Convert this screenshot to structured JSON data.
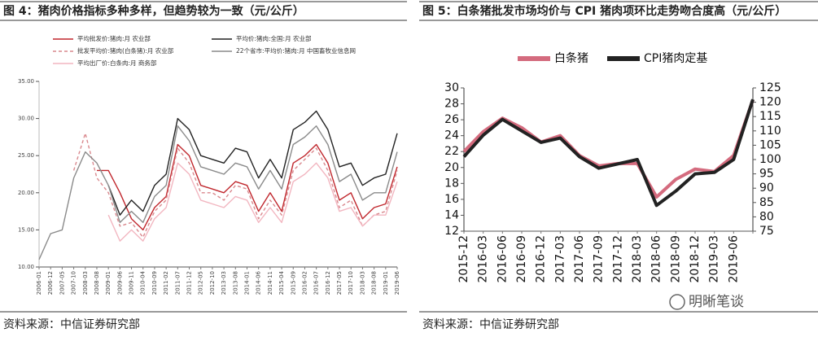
{
  "chart_data": [
    {
      "type": "line",
      "title": "图 4：猪肉价格指标多种多样，但趋势较为一致（元/公斤）",
      "source": "资料来源：中信证券研究部",
      "categories": [
        "2006-01",
        "2006-12",
        "2007-05",
        "2007-10",
        "2008-03",
        "2008-08",
        "2009-01",
        "2009-06",
        "2009-11",
        "2010-04",
        "2010-09",
        "2011-02",
        "2011-07",
        "2011-12",
        "2012-05",
        "2012-10",
        "2013-03",
        "2013-08",
        "2014-01",
        "2014-06",
        "2014-11",
        "2015-04",
        "2015-09",
        "2016-02",
        "2016-07",
        "2016-12",
        "2017-05",
        "2017-10",
        "2018-03",
        "2018-08",
        "2019-01",
        "2019-06"
      ],
      "ylim": [
        10,
        35
      ],
      "yticks": [
        {
          "value": 10,
          "label": "10.00"
        },
        {
          "value": 15,
          "label": "15.00"
        },
        {
          "value": 20,
          "label": "20.00"
        },
        {
          "value": 25,
          "label": "25.00"
        },
        {
          "value": 30,
          "label": "30.00"
        },
        {
          "value": 35,
          "label": "35.00"
        }
      ],
      "series": [
        {
          "name": "平均批发价:猪肉:月 农业部",
          "color": "#c0272d",
          "dash": false,
          "values": [
            null,
            null,
            null,
            null,
            null,
            23,
            23,
            20,
            16.5,
            15,
            18,
            19.5,
            26.5,
            25,
            21,
            20.5,
            20,
            21.5,
            21,
            17.5,
            20,
            17.5,
            24,
            25,
            26.5,
            24,
            19,
            20,
            16.5,
            18,
            18.5,
            23.5
          ]
        },
        {
          "name": "平均价:猪肉:全国:月 农业部",
          "color": "#222222",
          "dash": false,
          "values": [
            null,
            null,
            null,
            null,
            null,
            null,
            21,
            17,
            19,
            17.5,
            21,
            22.5,
            30,
            28.5,
            25,
            24.5,
            24,
            26,
            25.5,
            22,
            24.5,
            22,
            28.5,
            29.5,
            31,
            28.5,
            23.5,
            24,
            21,
            22,
            22.5,
            28
          ]
        },
        {
          "name": "批发平均价:猪肉(白条猪):月 农业部",
          "color": "#d9888d",
          "dash": true,
          "values": [
            null,
            null,
            null,
            23,
            28,
            22,
            20,
            15.5,
            16,
            14,
            17.5,
            19,
            26,
            24,
            20,
            20,
            19,
            21,
            20.5,
            16.5,
            19,
            17,
            23,
            24.5,
            26,
            23,
            18,
            19,
            15.5,
            17,
            17.5,
            23
          ]
        },
        {
          "name": "22个省市:平均价:猪肉:月 中国畜牧业信息网",
          "color": "#8a8a8a",
          "dash": false,
          "values": [
            11,
            14.5,
            15,
            22,
            25.5,
            24,
            21,
            16,
            17.5,
            16,
            19.5,
            21,
            29,
            27,
            23.5,
            23,
            22.5,
            24,
            23.5,
            20.5,
            23,
            20.5,
            26.5,
            27.5,
            29,
            26.5,
            21.5,
            22.5,
            19,
            20,
            20,
            25.5
          ]
        },
        {
          "name": "平均出厂价:白条肉:月 商务部",
          "color": "#f2b6c0",
          "dash": false,
          "values": [
            null,
            null,
            null,
            null,
            null,
            null,
            17,
            13.5,
            15,
            13.5,
            16.5,
            18,
            24,
            22.5,
            19,
            18.5,
            18,
            19.5,
            19,
            16,
            18,
            16,
            21.5,
            22.5,
            24,
            22,
            17.5,
            18,
            15.5,
            17,
            17,
            21.5
          ]
        }
      ]
    },
    {
      "type": "line",
      "title": "图 5：白条猪批发市场均价与 CPI 猪肉项环比走势吻合度高（元/公斤）",
      "source": "资料来源：中信证券研究部",
      "categories": [
        "2015-12",
        "2016-03",
        "2016-06",
        "2016-09",
        "2016-12",
        "2017-03",
        "2017-06",
        "2017-09",
        "2017-12",
        "2018-03",
        "2018-06",
        "2018-09",
        "2018-12",
        "2019-03",
        "2019-06",
        null
      ],
      "ylim": [
        12,
        30
      ],
      "yticks": [
        12,
        14,
        16,
        18,
        20,
        22,
        24,
        26,
        28,
        30
      ],
      "y2lim": [
        75,
        125
      ],
      "y2ticks": [
        75,
        80,
        85,
        90,
        95,
        100,
        105,
        110,
        115,
        120,
        125
      ],
      "series": [
        {
          "name": "白条猪",
          "color": "#d46b7e",
          "dash": false,
          "values": [
            22,
            24.5,
            26.2,
            25,
            23.2,
            24,
            21.5,
            20.2,
            20.5,
            20.5,
            16.3,
            18.5,
            19.8,
            19.5,
            21.5,
            28.5
          ]
        },
        {
          "name": "CPI猪肉定基",
          "color": "#222222",
          "dash": false,
          "axis": "y2",
          "values": [
            101,
            108.5,
            114,
            110,
            106,
            107.5,
            101,
            97,
            98.5,
            100,
            84,
            89,
            95,
            95.5,
            100,
            121
          ]
        }
      ]
    }
  ],
  "watermark": "明晰笔谈"
}
